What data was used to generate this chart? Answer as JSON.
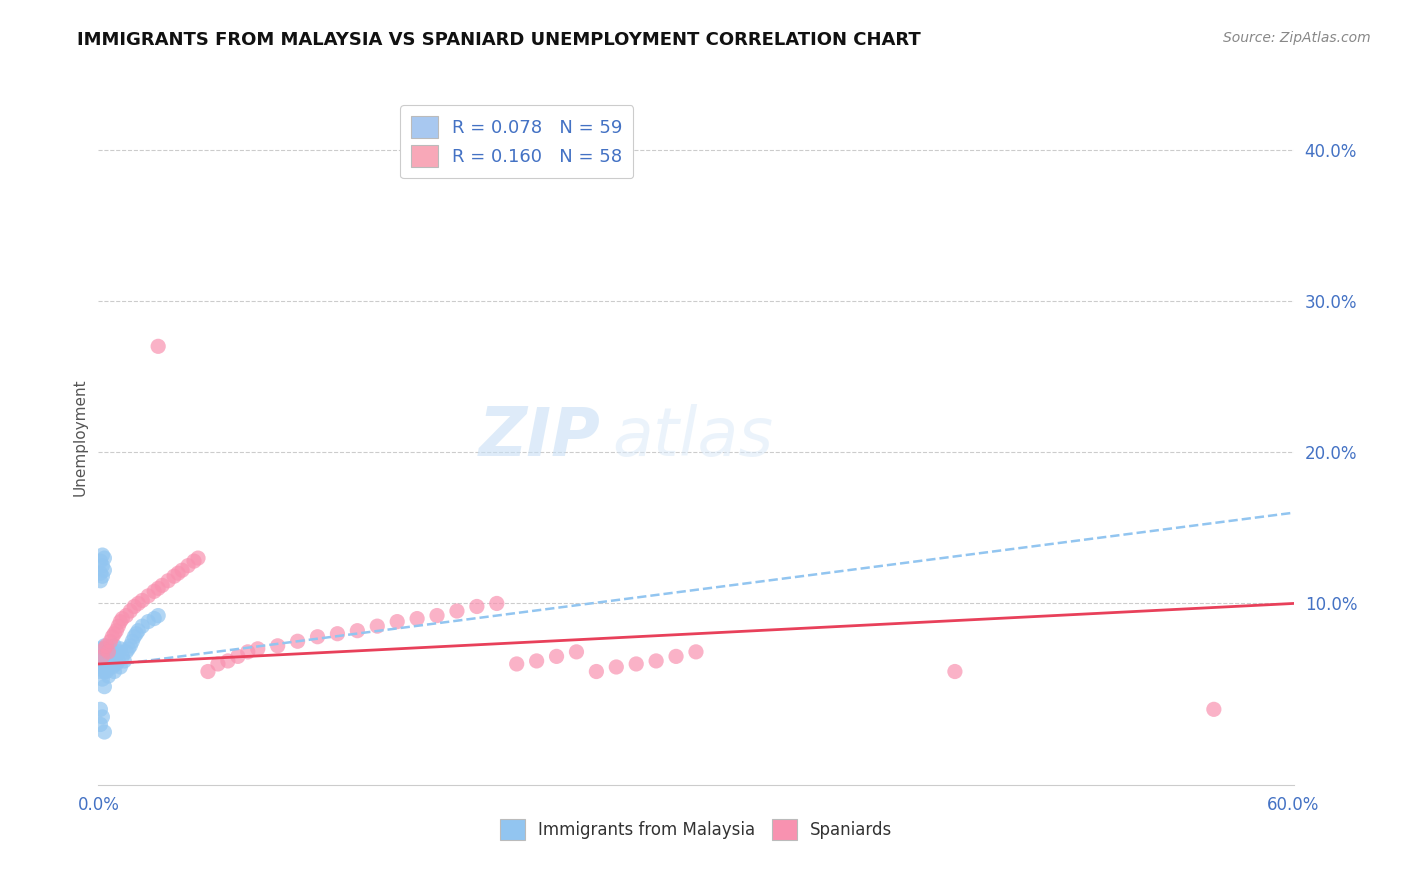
{
  "title": "IMMIGRANTS FROM MALAYSIA VS SPANIARD UNEMPLOYMENT CORRELATION CHART",
  "source": "Source: ZipAtlas.com",
  "ylabel": "Unemployment",
  "xlim": [
    0.0,
    0.6
  ],
  "ylim": [
    -0.02,
    0.44
  ],
  "yticks": [
    0.1,
    0.2,
    0.3,
    0.4
  ],
  "ytick_labels": [
    "10.0%",
    "20.0%",
    "30.0%",
    "40.0%"
  ],
  "xticks": [
    0.0,
    0.6
  ],
  "xtick_labels": [
    "0.0%",
    "60.0%"
  ],
  "legend_entries": [
    {
      "label": "R = 0.078   N = 59",
      "color": "#a8c8f0"
    },
    {
      "label": "R = 0.160   N = 58",
      "color": "#f8a8b8"
    }
  ],
  "watermark_zip": "ZIP",
  "watermark_atlas": "atlas",
  "background_color": "#ffffff",
  "grid_color": "#cccccc",
  "blue_scatter_x": [
    0.001,
    0.001,
    0.001,
    0.002,
    0.002,
    0.002,
    0.002,
    0.003,
    0.003,
    0.003,
    0.003,
    0.003,
    0.004,
    0.004,
    0.004,
    0.004,
    0.005,
    0.005,
    0.005,
    0.005,
    0.006,
    0.006,
    0.006,
    0.007,
    0.007,
    0.007,
    0.008,
    0.008,
    0.009,
    0.009,
    0.01,
    0.01,
    0.011,
    0.011,
    0.012,
    0.013,
    0.014,
    0.015,
    0.016,
    0.017,
    0.018,
    0.019,
    0.02,
    0.022,
    0.025,
    0.028,
    0.03,
    0.001,
    0.002,
    0.003,
    0.001,
    0.002,
    0.003,
    0.001,
    0.002,
    0.001,
    0.002,
    0.001,
    0.003
  ],
  "blue_scatter_y": [
    0.06,
    0.07,
    0.055,
    0.065,
    0.058,
    0.07,
    0.05,
    0.062,
    0.055,
    0.068,
    0.072,
    0.045,
    0.06,
    0.065,
    0.055,
    0.07,
    0.062,
    0.058,
    0.068,
    0.052,
    0.06,
    0.065,
    0.07,
    0.058,
    0.062,
    0.068,
    0.055,
    0.072,
    0.06,
    0.065,
    0.062,
    0.068,
    0.058,
    0.07,
    0.065,
    0.062,
    0.068,
    0.07,
    0.072,
    0.075,
    0.078,
    0.08,
    0.082,
    0.085,
    0.088,
    0.09,
    0.092,
    0.12,
    0.125,
    0.13,
    0.115,
    0.118,
    0.122,
    0.128,
    0.132,
    0.03,
    0.025,
    0.02,
    0.015
  ],
  "pink_scatter_x": [
    0.002,
    0.003,
    0.004,
    0.005,
    0.006,
    0.007,
    0.008,
    0.009,
    0.01,
    0.011,
    0.012,
    0.014,
    0.016,
    0.018,
    0.02,
    0.022,
    0.025,
    0.028,
    0.03,
    0.032,
    0.035,
    0.038,
    0.04,
    0.042,
    0.045,
    0.048,
    0.05,
    0.055,
    0.06,
    0.065,
    0.07,
    0.075,
    0.08,
    0.09,
    0.1,
    0.11,
    0.12,
    0.13,
    0.14,
    0.15,
    0.16,
    0.17,
    0.18,
    0.19,
    0.2,
    0.21,
    0.22,
    0.23,
    0.24,
    0.25,
    0.26,
    0.27,
    0.28,
    0.29,
    0.3,
    0.43,
    0.56,
    0.03
  ],
  "pink_scatter_y": [
    0.065,
    0.07,
    0.072,
    0.068,
    0.075,
    0.078,
    0.08,
    0.082,
    0.085,
    0.088,
    0.09,
    0.092,
    0.095,
    0.098,
    0.1,
    0.102,
    0.105,
    0.108,
    0.11,
    0.112,
    0.115,
    0.118,
    0.12,
    0.122,
    0.125,
    0.128,
    0.13,
    0.055,
    0.06,
    0.062,
    0.065,
    0.068,
    0.07,
    0.072,
    0.075,
    0.078,
    0.08,
    0.082,
    0.085,
    0.088,
    0.09,
    0.092,
    0.095,
    0.098,
    0.1,
    0.06,
    0.062,
    0.065,
    0.068,
    0.055,
    0.058,
    0.06,
    0.062,
    0.065,
    0.068,
    0.055,
    0.03,
    0.27
  ],
  "blue_line_x": [
    0.0,
    0.6
  ],
  "blue_line_y": [
    0.058,
    0.16
  ],
  "pink_line_x": [
    0.0,
    0.6
  ],
  "pink_line_y": [
    0.06,
    0.1
  ],
  "blue_color": "#92c5f0",
  "pink_color": "#f892b0",
  "blue_line_color": "#92c5f0",
  "pink_line_color": "#e8405a",
  "title_fontsize": 13,
  "source_fontsize": 10,
  "watermark_fontsize_zip": 48,
  "watermark_fontsize_atlas": 48
}
